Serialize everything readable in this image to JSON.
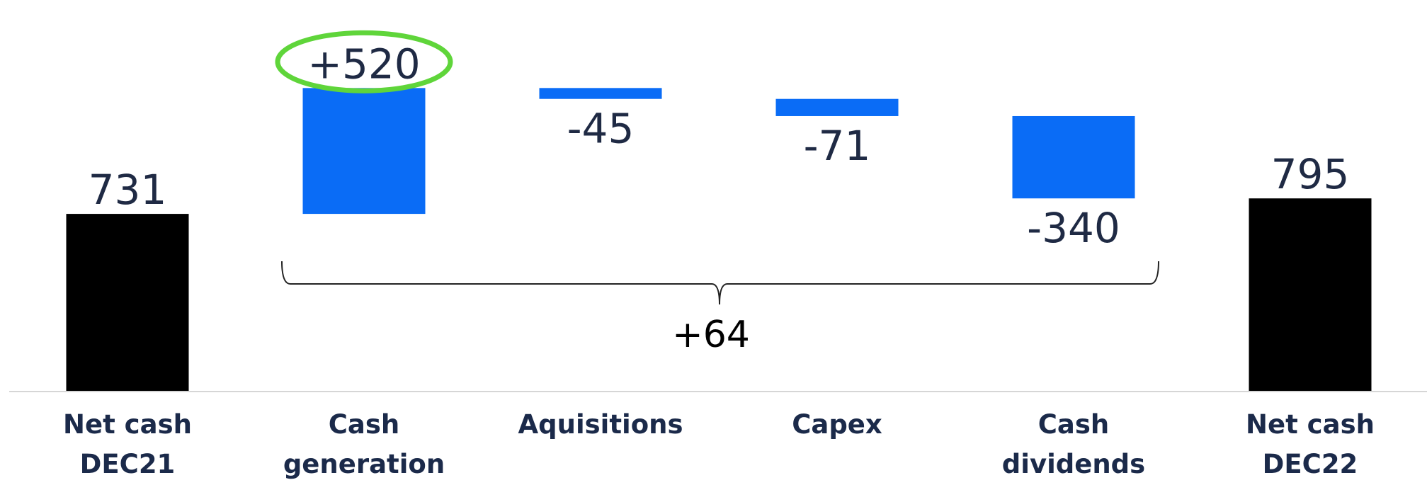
{
  "chart_data": {
    "type": "waterfall",
    "categories": [
      "Net cash\nDEC21",
      "Cash\ngeneration",
      "Aquisitions",
      "Capex",
      "Cash\ndividends",
      "Net cash\nDEC22"
    ],
    "values": [
      731,
      520,
      -45,
      -71,
      -340,
      795
    ],
    "value_labels": [
      "731",
      "+520",
      "-45",
      "-71",
      "-340",
      "795"
    ],
    "bar_kinds": [
      "total",
      "delta",
      "delta",
      "delta",
      "delta",
      "total"
    ],
    "total_color": "#000000",
    "delta_color": "#0a6cf6",
    "ylim": [
      0,
      1600
    ],
    "annotation": "+64"
  }
}
